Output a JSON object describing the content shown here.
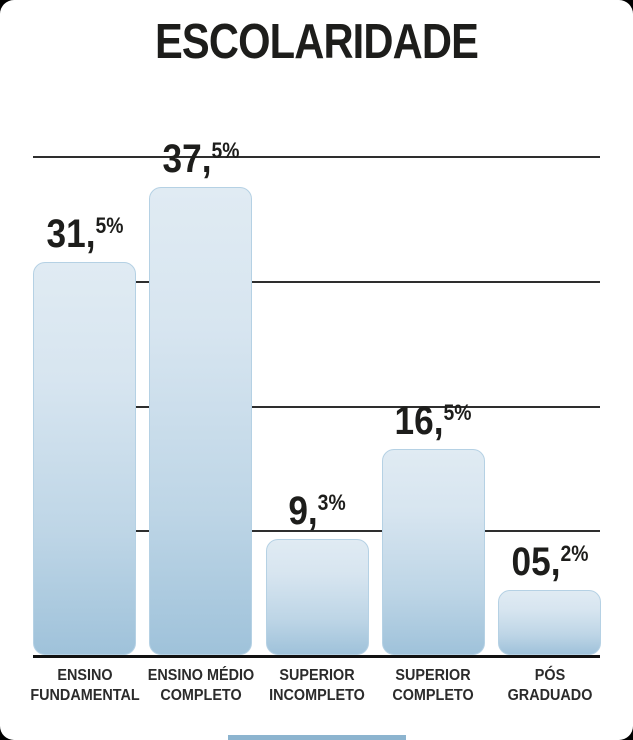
{
  "title": "ESCOLARIDADE",
  "chart_data": {
    "type": "bar",
    "title": "ESCOLARIDADE",
    "categories": [
      "ENSINO FUNDAMENTAL",
      "ENSINO MÉDIO COMPLETO",
      "SUPERIOR INCOMPLETO",
      "SUPERIOR COMPLETO",
      "PÓS GRADUADO"
    ],
    "category_lines": [
      [
        "ENSINO",
        "FUNDAMENTAL"
      ],
      [
        "ENSINO MÉDIO",
        "COMPLETO"
      ],
      [
        "SUPERIOR",
        "INCOMPLETO"
      ],
      [
        "SUPERIOR",
        "COMPLETO"
      ],
      [
        "PÓS",
        "GRADUADO"
      ]
    ],
    "values": [
      31.5,
      37.5,
      9.3,
      16.5,
      5.2
    ],
    "value_labels": [
      {
        "main": "31,",
        "sup": "5%"
      },
      {
        "main": "37,",
        "sup": "5%"
      },
      {
        "main": "9,",
        "sup": "3%"
      },
      {
        "main": "16,",
        "sup": "5%"
      },
      {
        "main": "05,",
        "sup": "2%"
      }
    ],
    "xlabel": "",
    "ylabel": "",
    "ylim": [
      0,
      40
    ],
    "gridline_values": [
      10,
      20,
      30,
      40
    ],
    "grid_on": true,
    "legend_position": "none",
    "colors": {
      "bar_gradient_top": "#e0ebf3",
      "bar_gradient_bottom": "#9fc2da",
      "bar_border": "#b5d1e4",
      "gridline": "#2e2e2e",
      "baseline": "#111111",
      "value_text": "#1d1d1b",
      "category_text": "#2b2b2b",
      "card_background": "#ffffff",
      "outer_background": "#000000",
      "footer_ribbon": "#8cb4cf"
    }
  }
}
